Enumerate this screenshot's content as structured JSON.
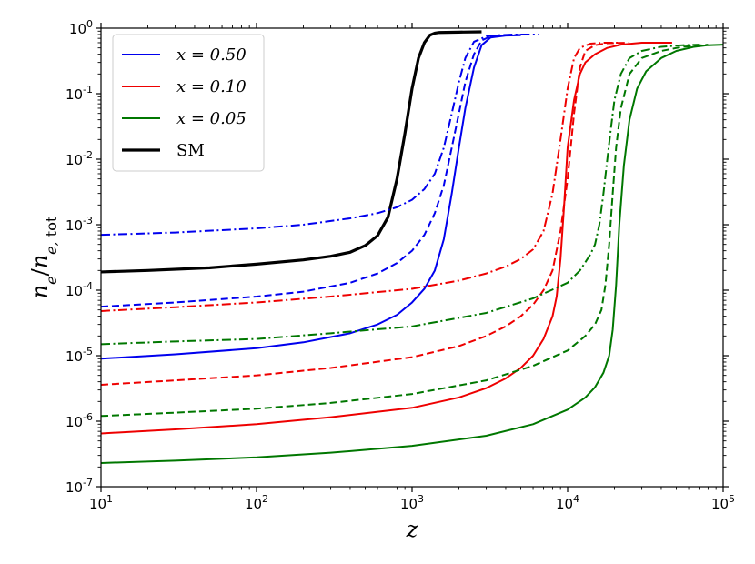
{
  "chart_data": {
    "type": "line",
    "xscale": "log",
    "yscale": "log",
    "xlim": [
      10,
      100000
    ],
    "ylim": [
      1e-07,
      1
    ],
    "xlabel": "z",
    "ylabel": "n_e/n_{e,tot}",
    "grid": false,
    "legend_position": "top-left",
    "xticks": [
      {
        "value": 10,
        "base": "10",
        "exp": "1"
      },
      {
        "value": 100,
        "base": "10",
        "exp": "2"
      },
      {
        "value": 1000,
        "base": "10",
        "exp": "3"
      },
      {
        "value": 10000,
        "base": "10",
        "exp": "4"
      },
      {
        "value": 100000,
        "base": "10",
        "exp": "5"
      }
    ],
    "yticks": [
      {
        "value": 1e-07,
        "base": "10",
        "exp": "-7"
      },
      {
        "value": 1e-06,
        "base": "10",
        "exp": "-6"
      },
      {
        "value": 1e-05,
        "base": "10",
        "exp": "-5"
      },
      {
        "value": 0.0001,
        "base": "10",
        "exp": "-4"
      },
      {
        "value": 0.001,
        "base": "10",
        "exp": "-3"
      },
      {
        "value": 0.01,
        "base": "10",
        "exp": "-2"
      },
      {
        "value": 0.1,
        "base": "10",
        "exp": "-1"
      },
      {
        "value": 1,
        "base": "10",
        "exp": "0"
      }
    ],
    "legend": [
      {
        "label": "x = 0.50",
        "color": "#0000ee",
        "style": "solid",
        "math": true
      },
      {
        "label": "x = 0.10",
        "color": "#ee0000",
        "style": "solid",
        "math": true
      },
      {
        "label": "x = 0.05",
        "color": "#007700",
        "style": "solid",
        "math": true
      },
      {
        "label": "SM",
        "color": "#000000",
        "style": "solid",
        "math": false
      }
    ],
    "series": [
      {
        "color": "#000000",
        "style": "solid",
        "width": 3.2,
        "points": [
          [
            10,
            0.00019
          ],
          [
            20,
            0.0002
          ],
          [
            50,
            0.00022
          ],
          [
            100,
            0.00025
          ],
          [
            200,
            0.00029
          ],
          [
            300,
            0.00033
          ],
          [
            400,
            0.00038
          ],
          [
            500,
            0.00048
          ],
          [
            600,
            0.00068
          ],
          [
            700,
            0.0013
          ],
          [
            800,
            0.005
          ],
          [
            900,
            0.025
          ],
          [
            1000,
            0.12
          ],
          [
            1100,
            0.35
          ],
          [
            1200,
            0.6
          ],
          [
            1300,
            0.78
          ],
          [
            1400,
            0.84
          ],
          [
            1500,
            0.86
          ],
          [
            2000,
            0.87
          ],
          [
            2800,
            0.88
          ]
        ]
      },
      {
        "color": "#0000ee",
        "style": "dashdot",
        "width": 2,
        "points": [
          [
            10,
            0.0007
          ],
          [
            30,
            0.00076
          ],
          [
            100,
            0.00088
          ],
          [
            200,
            0.001
          ],
          [
            400,
            0.00125
          ],
          [
            600,
            0.0015
          ],
          [
            800,
            0.00185
          ],
          [
            1000,
            0.0024
          ],
          [
            1200,
            0.0035
          ],
          [
            1400,
            0.006
          ],
          [
            1600,
            0.015
          ],
          [
            1800,
            0.05
          ],
          [
            2000,
            0.15
          ],
          [
            2200,
            0.35
          ],
          [
            2500,
            0.62
          ],
          [
            3000,
            0.75
          ],
          [
            3500,
            0.78
          ],
          [
            4500,
            0.8
          ],
          [
            6500,
            0.8
          ]
        ]
      },
      {
        "color": "#0000ee",
        "style": "dashed",
        "width": 2,
        "points": [
          [
            10,
            5.6e-05
          ],
          [
            30,
            6.5e-05
          ],
          [
            100,
            8e-05
          ],
          [
            200,
            9.5e-05
          ],
          [
            400,
            0.00013
          ],
          [
            600,
            0.00018
          ],
          [
            800,
            0.00026
          ],
          [
            1000,
            0.0004
          ],
          [
            1200,
            0.0007
          ],
          [
            1400,
            0.0015
          ],
          [
            1600,
            0.004
          ],
          [
            1800,
            0.015
          ],
          [
            2000,
            0.05
          ],
          [
            2200,
            0.15
          ],
          [
            2500,
            0.4
          ],
          [
            2800,
            0.65
          ],
          [
            3200,
            0.75
          ],
          [
            4000,
            0.78
          ],
          [
            5000,
            0.79
          ]
        ]
      },
      {
        "color": "#0000ee",
        "style": "solid",
        "width": 2,
        "points": [
          [
            10,
            9e-06
          ],
          [
            30,
            1.05e-05
          ],
          [
            100,
            1.3e-05
          ],
          [
            200,
            1.6e-05
          ],
          [
            400,
            2.2e-05
          ],
          [
            600,
            3e-05
          ],
          [
            800,
            4.2e-05
          ],
          [
            1000,
            6.5e-05
          ],
          [
            1200,
            0.000105
          ],
          [
            1400,
            0.0002
          ],
          [
            1600,
            0.0006
          ],
          [
            1800,
            0.003
          ],
          [
            2000,
            0.015
          ],
          [
            2200,
            0.06
          ],
          [
            2500,
            0.25
          ],
          [
            2800,
            0.55
          ],
          [
            3200,
            0.72
          ],
          [
            4000,
            0.77
          ],
          [
            5000,
            0.78
          ]
        ]
      },
      {
        "color": "#ee0000",
        "style": "dashdot",
        "width": 2,
        "points": [
          [
            10,
            4.8e-05
          ],
          [
            30,
            5.5e-05
          ],
          [
            100,
            6.5e-05
          ],
          [
            300,
            8e-05
          ],
          [
            1000,
            0.000105
          ],
          [
            2000,
            0.00014
          ],
          [
            3000,
            0.00018
          ],
          [
            4000,
            0.00023
          ],
          [
            5000,
            0.0003
          ],
          [
            6000,
            0.00042
          ],
          [
            7000,
            0.0008
          ],
          [
            8000,
            0.003
          ],
          [
            9000,
            0.02
          ],
          [
            10000,
            0.12
          ],
          [
            11000,
            0.35
          ],
          [
            12000,
            0.5
          ],
          [
            14000,
            0.58
          ],
          [
            17000,
            0.6
          ],
          [
            22000,
            0.6
          ]
        ]
      },
      {
        "color": "#ee0000",
        "style": "dashed",
        "width": 2,
        "points": [
          [
            10,
            3.6e-06
          ],
          [
            30,
            4.2e-06
          ],
          [
            100,
            5e-06
          ],
          [
            300,
            6.5e-06
          ],
          [
            1000,
            9.5e-06
          ],
          [
            2000,
            1.4e-05
          ],
          [
            3000,
            2e-05
          ],
          [
            4000,
            2.8e-05
          ],
          [
            5000,
            4e-05
          ],
          [
            6000,
            6e-05
          ],
          [
            7000,
            0.0001
          ],
          [
            8000,
            0.0002
          ],
          [
            9000,
            0.0008
          ],
          [
            10000,
            0.005
          ],
          [
            11000,
            0.05
          ],
          [
            12000,
            0.25
          ],
          [
            13000,
            0.45
          ],
          [
            15000,
            0.55
          ],
          [
            18000,
            0.59
          ],
          [
            25000,
            0.6
          ]
        ]
      },
      {
        "color": "#ee0000",
        "style": "solid",
        "width": 2,
        "points": [
          [
            10,
            6.5e-07
          ],
          [
            30,
            7.5e-07
          ],
          [
            100,
            9e-07
          ],
          [
            300,
            1.15e-06
          ],
          [
            1000,
            1.6e-06
          ],
          [
            2000,
            2.3e-06
          ],
          [
            3000,
            3.2e-06
          ],
          [
            4000,
            4.5e-06
          ],
          [
            5000,
            6.5e-06
          ],
          [
            6000,
            1e-05
          ],
          [
            7000,
            1.8e-05
          ],
          [
            8000,
            4e-05
          ],
          [
            8500,
            8e-05
          ],
          [
            9000,
            0.0003
          ],
          [
            9500,
            0.002
          ],
          [
            10000,
            0.015
          ],
          [
            11000,
            0.08
          ],
          [
            12000,
            0.2
          ],
          [
            13000,
            0.3
          ],
          [
            15000,
            0.4
          ],
          [
            18000,
            0.5
          ],
          [
            22000,
            0.56
          ],
          [
            30000,
            0.6
          ],
          [
            47000,
            0.6
          ]
        ]
      },
      {
        "color": "#007700",
        "style": "dashdot",
        "width": 2,
        "points": [
          [
            10,
            1.5e-05
          ],
          [
            30,
            1.65e-05
          ],
          [
            100,
            1.8e-05
          ],
          [
            300,
            2.2e-05
          ],
          [
            1000,
            2.8e-05
          ],
          [
            3000,
            4.5e-05
          ],
          [
            6000,
            7.5e-05
          ],
          [
            10000,
            0.00013
          ],
          [
            12000,
            0.0002
          ],
          [
            14000,
            0.00035
          ],
          [
            15000,
            0.0005
          ],
          [
            16000,
            0.001
          ],
          [
            17000,
            0.003
          ],
          [
            18000,
            0.01
          ],
          [
            19000,
            0.03
          ],
          [
            20000,
            0.08
          ],
          [
            22000,
            0.2
          ],
          [
            25000,
            0.35
          ],
          [
            30000,
            0.45
          ],
          [
            40000,
            0.52
          ],
          [
            55000,
            0.55
          ],
          [
            70000,
            0.56
          ]
        ]
      },
      {
        "color": "#007700",
        "style": "dashed",
        "width": 2,
        "points": [
          [
            10,
            1.2e-06
          ],
          [
            30,
            1.35e-06
          ],
          [
            100,
            1.55e-06
          ],
          [
            300,
            1.9e-06
          ],
          [
            1000,
            2.6e-06
          ],
          [
            3000,
            4.2e-06
          ],
          [
            6000,
            7e-06
          ],
          [
            10000,
            1.2e-05
          ],
          [
            13000,
            2e-05
          ],
          [
            15000,
            3e-05
          ],
          [
            16500,
            5e-05
          ],
          [
            17500,
            0.00012
          ],
          [
            18500,
            0.0005
          ],
          [
            19500,
            0.003
          ],
          [
            20500,
            0.015
          ],
          [
            22000,
            0.06
          ],
          [
            25000,
            0.2
          ],
          [
            30000,
            0.35
          ],
          [
            40000,
            0.45
          ],
          [
            55000,
            0.52
          ],
          [
            80000,
            0.56
          ]
        ]
      },
      {
        "color": "#007700",
        "style": "solid",
        "width": 2,
        "points": [
          [
            10,
            2.3e-07
          ],
          [
            30,
            2.5e-07
          ],
          [
            100,
            2.8e-07
          ],
          [
            300,
            3.3e-07
          ],
          [
            1000,
            4.2e-07
          ],
          [
            3000,
            6e-07
          ],
          [
            6000,
            9e-07
          ],
          [
            10000,
            1.5e-06
          ],
          [
            13000,
            2.3e-06
          ],
          [
            15000,
            3.3e-06
          ],
          [
            17000,
            5.5e-06
          ],
          [
            18500,
            1e-05
          ],
          [
            19500,
            2.5e-05
          ],
          [
            20500,
            0.00012
          ],
          [
            21500,
            0.001
          ],
          [
            23000,
            0.008
          ],
          [
            25000,
            0.04
          ],
          [
            28000,
            0.12
          ],
          [
            32000,
            0.22
          ],
          [
            40000,
            0.35
          ],
          [
            50000,
            0.45
          ],
          [
            65000,
            0.52
          ],
          [
            80000,
            0.55
          ],
          [
            100000,
            0.56
          ]
        ]
      }
    ]
  }
}
